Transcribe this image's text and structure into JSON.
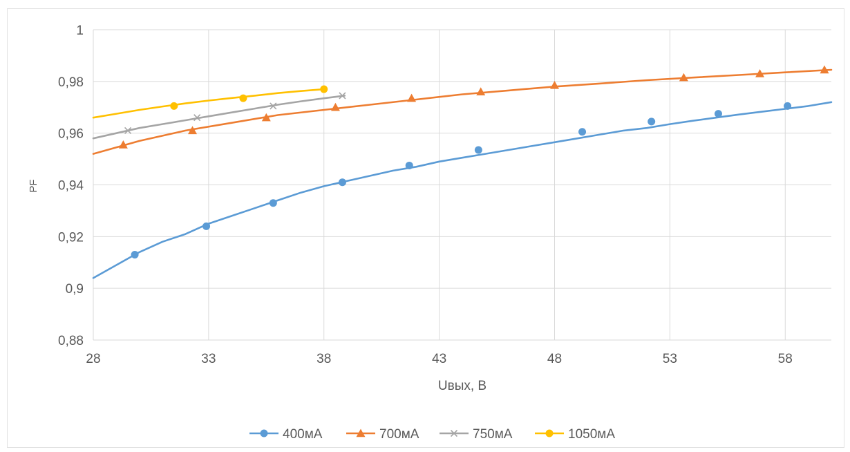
{
  "chart_data": {
    "type": "line",
    "title": "",
    "xlabel": "Uвых, В",
    "ylabel": "PF",
    "xlim": [
      28,
      60
    ],
    "ylim": [
      0.88,
      1
    ],
    "x_ticks": [
      "28",
      "33",
      "38",
      "43",
      "48",
      "53",
      "58"
    ],
    "y_ticks": [
      "0,88",
      "0,9",
      "0,92",
      "0,94",
      "0,96",
      "0,98",
      "1"
    ],
    "grid": true,
    "legend_position": "bottom",
    "series": [
      {
        "name": "400мА",
        "color": "#5B9BD5",
        "marker": "circle",
        "curve_x": [
          28,
          29,
          30,
          31,
          32,
          33,
          34,
          35,
          36,
          37,
          38,
          39,
          40,
          41,
          42,
          43,
          44,
          45,
          46,
          47,
          48,
          49,
          50,
          51,
          52,
          53,
          54,
          55,
          56,
          57,
          58,
          59,
          60
        ],
        "curve_y": [
          0.904,
          0.909,
          0.914,
          0.918,
          0.921,
          0.925,
          0.928,
          0.931,
          0.934,
          0.937,
          0.9395,
          0.9415,
          0.9435,
          0.9455,
          0.947,
          0.949,
          0.9505,
          0.952,
          0.9535,
          0.955,
          0.9565,
          0.958,
          0.9595,
          0.961,
          0.962,
          0.9635,
          0.9648,
          0.966,
          0.9672,
          0.9683,
          0.9694,
          0.9705,
          0.972
        ],
        "points_x": [
          29.8,
          32.9,
          35.8,
          38.8,
          41.7,
          44.7,
          49.2,
          52.2,
          55.1,
          58.1
        ],
        "points_y": [
          0.913,
          0.924,
          0.933,
          0.941,
          0.9475,
          0.9535,
          0.9605,
          0.9645,
          0.9675,
          0.9705
        ]
      },
      {
        "name": "700мА",
        "color": "#ED7D31",
        "marker": "triangle",
        "curve_x": [
          28,
          30,
          32,
          34,
          36,
          38,
          40,
          42,
          44,
          46,
          48,
          50,
          52,
          54,
          56,
          58,
          60
        ],
        "curve_y": [
          0.952,
          0.957,
          0.961,
          0.964,
          0.967,
          0.969,
          0.971,
          0.973,
          0.975,
          0.9765,
          0.978,
          0.9792,
          0.9805,
          0.9815,
          0.9825,
          0.9835,
          0.9845
        ],
        "points_x": [
          29.3,
          32.3,
          35.5,
          38.5,
          41.8,
          44.8,
          48.0,
          53.6,
          56.9,
          59.7
        ],
        "points_y": [
          0.9555,
          0.961,
          0.966,
          0.97,
          0.9735,
          0.976,
          0.9785,
          0.9815,
          0.983,
          0.9845
        ]
      },
      {
        "name": "750мА",
        "color": "#A5A5A5",
        "marker": "cross",
        "curve_x": [
          28,
          29,
          30,
          31,
          32,
          33,
          34,
          35,
          36,
          37,
          38,
          38.9
        ],
        "curve_y": [
          0.958,
          0.96,
          0.962,
          0.9635,
          0.965,
          0.9665,
          0.968,
          0.9695,
          0.971,
          0.9723,
          0.9735,
          0.9745
        ],
        "points_x": [
          29.5,
          32.5,
          35.8,
          38.8
        ],
        "points_y": [
          0.961,
          0.966,
          0.9705,
          0.9745
        ]
      },
      {
        "name": "1050мА",
        "color": "#FFC000",
        "marker": "circle",
        "curve_x": [
          28,
          29,
          30,
          31,
          32,
          33,
          34,
          35,
          36,
          37,
          38
        ],
        "curve_y": [
          0.966,
          0.9675,
          0.969,
          0.9703,
          0.9715,
          0.9726,
          0.9736,
          0.9745,
          0.9755,
          0.9763,
          0.977
        ],
        "points_x": [
          31.5,
          34.5,
          38.0
        ],
        "points_y": [
          0.9705,
          0.9735,
          0.977
        ]
      }
    ]
  }
}
